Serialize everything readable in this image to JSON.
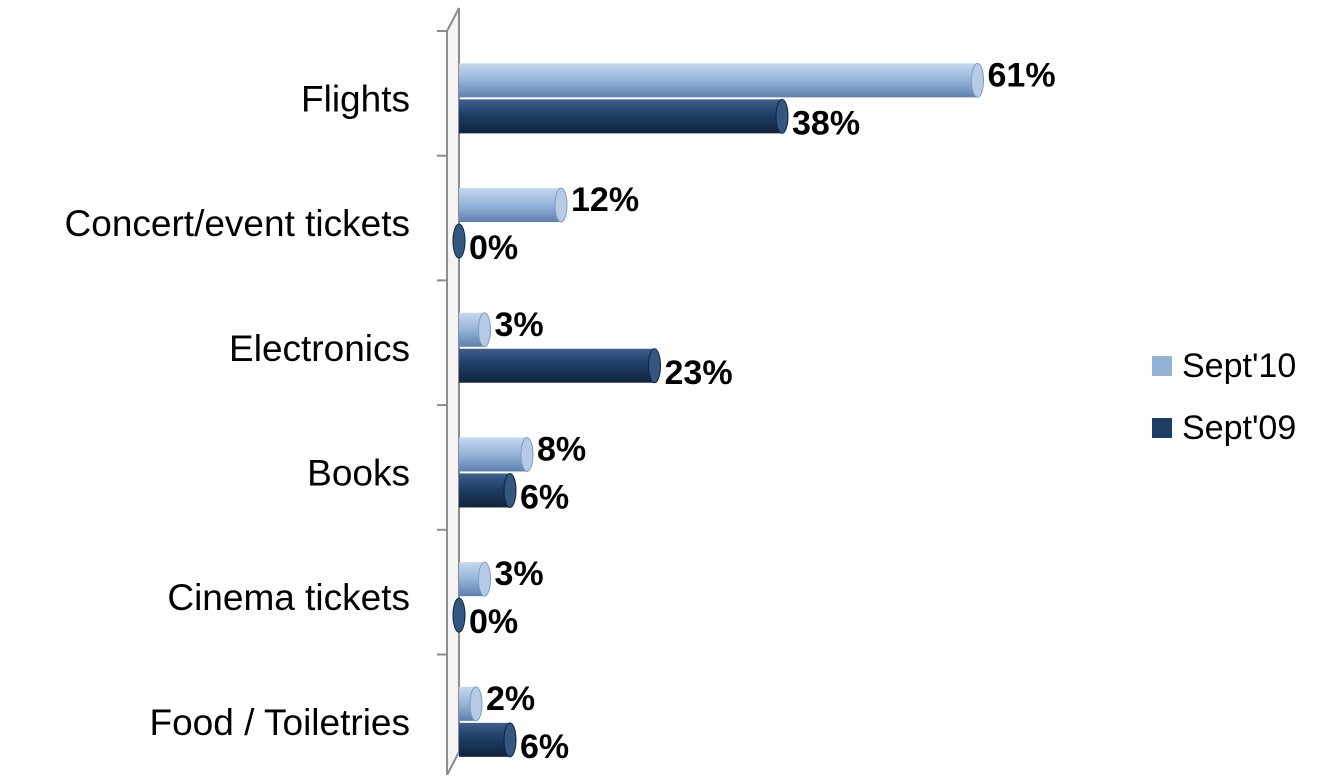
{
  "chart_data": {
    "type": "bar",
    "orientation": "horizontal",
    "categories": [
      "Flights",
      "Concert/event tickets",
      "Electronics",
      "Books",
      "Cinema tickets",
      "Food / Toiletries"
    ],
    "series": [
      {
        "name": "Sept'10",
        "color": "#95b3d7",
        "values": [
          61,
          12,
          3,
          8,
          3,
          2
        ],
        "labels": [
          "61%",
          "12%",
          "3%",
          "8%",
          "3%",
          "2%"
        ]
      },
      {
        "name": "Sept'09",
        "color": "#1f3e66",
        "values": [
          38,
          0,
          23,
          6,
          0,
          6
        ],
        "labels": [
          "38%",
          "0%",
          "23%",
          "6%",
          "0%",
          "6%"
        ]
      }
    ],
    "legend": "right",
    "grid": false,
    "xlim": [
      0,
      70
    ],
    "style": "3d-cylinder"
  }
}
